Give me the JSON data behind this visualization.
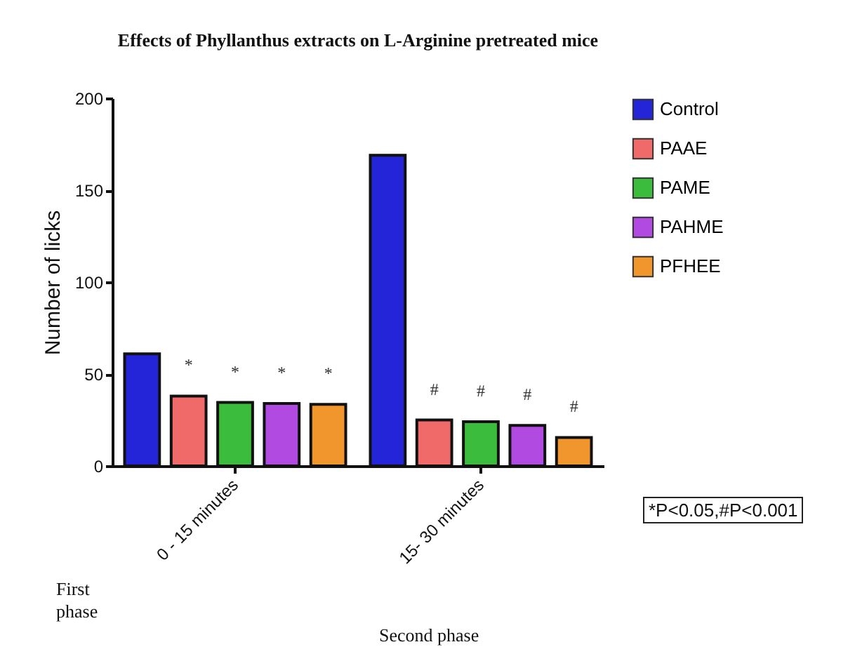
{
  "chart_data": {
    "type": "bar",
    "title": "Effects of Phyllanthus extracts on L-Arginine pretreated mice",
    "ylabel": "Number of licks",
    "categories": [
      "0 - 15 minutes",
      "15- 30 minutes"
    ],
    "series": [
      {
        "name": "Control",
        "color": "#2424d8",
        "values": [
          61,
          169
        ]
      },
      {
        "name": "PAAE",
        "color": "#f06a6a",
        "values": [
          38,
          25
        ],
        "value_labels": [
          "*",
          "#"
        ]
      },
      {
        "name": "PAME",
        "color": "#3cbc3c",
        "values": [
          34.5,
          24
        ],
        "value_labels": [
          "*",
          "#"
        ]
      },
      {
        "name": "PAHME",
        "color": "#b04ae0",
        "values": [
          34,
          22
        ],
        "value_labels": [
          "*",
          "#"
        ]
      },
      {
        "name": "PFHEE",
        "color": "#f0962c",
        "values": [
          33.5,
          15.5
        ],
        "value_labels": [
          "*",
          "#"
        ]
      }
    ],
    "ylim": [
      0,
      200
    ],
    "yticks": [
      0,
      50,
      100,
      150,
      200
    ],
    "legend": "top right",
    "annotations": [
      "*P<0.05,#P<0.001",
      "First phase",
      "Second phase"
    ]
  }
}
